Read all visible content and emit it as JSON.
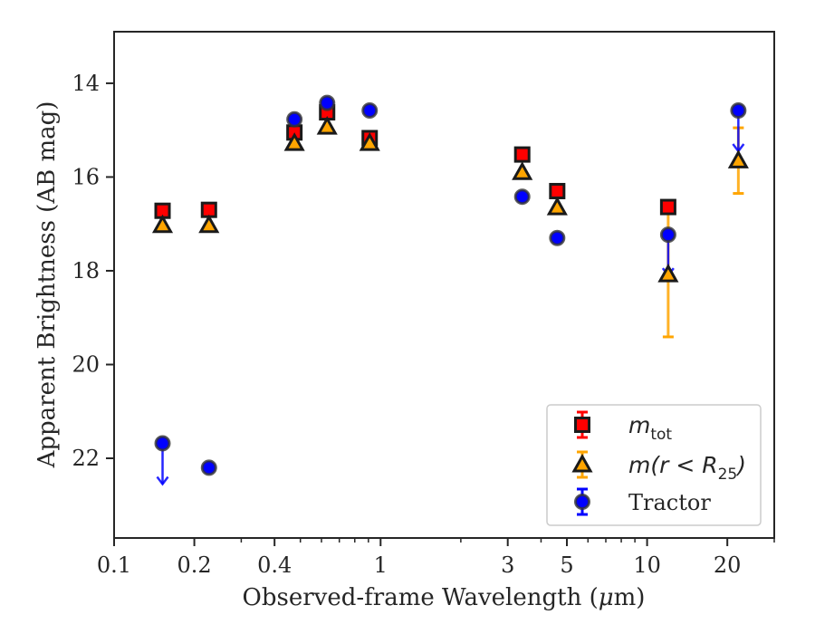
{
  "chart_data": {
    "type": "scatter",
    "xscale": "log",
    "xlim": [
      0.1,
      30
    ],
    "ylim": [
      23.7,
      12.9
    ],
    "y_inverted": true,
    "xlabel_prefix": "Observed-frame Wavelength (",
    "xlabel_mu": "μ",
    "xlabel_suffix": "m)",
    "ylabel": "Apparent Brightness (AB mag)",
    "x_ticks": [
      {
        "value": 0.1,
        "label": "0.1"
      },
      {
        "value": 0.2,
        "label": "0.2"
      },
      {
        "value": 0.4,
        "label": "0.4"
      },
      {
        "value": 1,
        "label": "1"
      },
      {
        "value": 3,
        "label": "3"
      },
      {
        "value": 5,
        "label": "5"
      },
      {
        "value": 10,
        "label": "10"
      },
      {
        "value": 20,
        "label": "20"
      }
    ],
    "x_minor_ticks": [
      0.3,
      0.5,
      0.6,
      0.7,
      0.8,
      0.9,
      2,
      4,
      6,
      7,
      8,
      9,
      30
    ],
    "y_ticks": [
      {
        "value": 14,
        "label": "14"
      },
      {
        "value": 16,
        "label": "16"
      },
      {
        "value": 18,
        "label": "18"
      },
      {
        "value": 20,
        "label": "20"
      },
      {
        "value": 22,
        "label": "22"
      }
    ],
    "series": [
      {
        "name": "m_tot",
        "marker": "square",
        "color": "#ff0000",
        "points": [
          {
            "x": 0.152,
            "y": 16.72
          },
          {
            "x": 0.227,
            "y": 16.7
          },
          {
            "x": 0.475,
            "y": 15.05
          },
          {
            "x": 0.63,
            "y": 14.62
          },
          {
            "x": 0.91,
            "y": 15.17
          },
          {
            "x": 3.4,
            "y": 15.52
          },
          {
            "x": 4.6,
            "y": 16.3
          },
          {
            "x": 12.0,
            "y": 16.64
          }
        ]
      },
      {
        "name": "m(r < R25)",
        "marker": "triangle",
        "color": "#ffa500",
        "points": [
          {
            "x": 0.152,
            "y": 17.03
          },
          {
            "x": 0.227,
            "y": 17.03
          },
          {
            "x": 0.475,
            "y": 15.28
          },
          {
            "x": 0.63,
            "y": 14.93
          },
          {
            "x": 0.91,
            "y": 15.28
          },
          {
            "x": 3.4,
            "y": 15.9
          },
          {
            "x": 4.6,
            "y": 16.65
          },
          {
            "x": 12.0,
            "y": 18.08,
            "err": 1.33
          },
          {
            "x": 22.0,
            "y": 15.65,
            "err": 0.7
          }
        ]
      },
      {
        "name": "Tractor",
        "marker": "circle",
        "color": "#0000ff",
        "points": [
          {
            "x": 0.152,
            "y": 21.68,
            "upper_limit": true
          },
          {
            "x": 0.227,
            "y": 22.2
          },
          {
            "x": 0.475,
            "y": 14.77
          },
          {
            "x": 0.63,
            "y": 14.42
          },
          {
            "x": 0.91,
            "y": 14.58
          },
          {
            "x": 3.4,
            "y": 16.42
          },
          {
            "x": 4.6,
            "y": 17.3
          },
          {
            "x": 12.0,
            "y": 17.23,
            "upper_limit": true
          },
          {
            "x": 22.0,
            "y": 14.58,
            "upper_limit": true
          }
        ]
      }
    ],
    "legend": {
      "placement": "lower-right",
      "entries": [
        {
          "main": "m",
          "sub": "tot",
          "suffix": ""
        },
        {
          "main": "m(r < R",
          "sub": "25",
          "suffix": ")"
        },
        {
          "main": "Tractor",
          "sub": "",
          "suffix": ""
        }
      ]
    },
    "grid": false
  }
}
